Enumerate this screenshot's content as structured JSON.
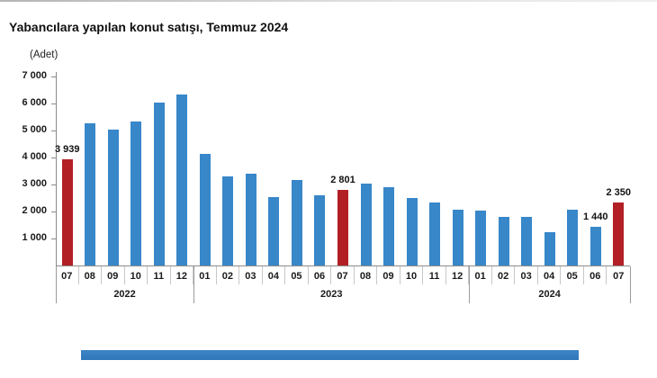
{
  "title": "Yabancılara yapılan konut satışı, Temmuz 2024",
  "unit_label": "(Adet)",
  "colors": {
    "bar_blue": "#3787C9",
    "bar_red": "#B22025",
    "axis": "#8C8C8C",
    "cell_border": "#C8C8C8",
    "footer_bar": "#3C85C6"
  },
  "chart_data": {
    "type": "bar",
    "title": "Yabancılara yapılan konut satışı, Temmuz 2024",
    "ylabel": "(Adet)",
    "ylim": [
      0,
      7000
    ],
    "grid": false,
    "legend": "none",
    "y_ticks": [
      {
        "value": 7000,
        "label": "7 000"
      },
      {
        "value": 6000,
        "label": "6 000"
      },
      {
        "value": 5000,
        "label": "5 000"
      },
      {
        "value": 4000,
        "label": "4 000"
      },
      {
        "value": 3000,
        "label": "3 000"
      },
      {
        "value": 2000,
        "label": "2 000"
      },
      {
        "value": 1000,
        "label": "1 000"
      }
    ],
    "points": [
      {
        "year": "2022",
        "month": "07",
        "value": 3939,
        "highlight": true,
        "label": "3 939"
      },
      {
        "year": "2022",
        "month": "08",
        "value": 5280,
        "highlight": false
      },
      {
        "year": "2022",
        "month": "09",
        "value": 5050,
        "highlight": false
      },
      {
        "year": "2022",
        "month": "10",
        "value": 5330,
        "highlight": false
      },
      {
        "year": "2022",
        "month": "11",
        "value": 6030,
        "highlight": false
      },
      {
        "year": "2022",
        "month": "12",
        "value": 6350,
        "highlight": false
      },
      {
        "year": "2023",
        "month": "01",
        "value": 4150,
        "highlight": false
      },
      {
        "year": "2023",
        "month": "02",
        "value": 3310,
        "highlight": false
      },
      {
        "year": "2023",
        "month": "03",
        "value": 3390,
        "highlight": false
      },
      {
        "year": "2023",
        "month": "04",
        "value": 2520,
        "highlight": false
      },
      {
        "year": "2023",
        "month": "05",
        "value": 3160,
        "highlight": false
      },
      {
        "year": "2023",
        "month": "06",
        "value": 2600,
        "highlight": false
      },
      {
        "year": "2023",
        "month": "07",
        "value": 2801,
        "highlight": true,
        "label": "2 801"
      },
      {
        "year": "2023",
        "month": "08",
        "value": 3030,
        "highlight": false
      },
      {
        "year": "2023",
        "month": "09",
        "value": 2900,
        "highlight": false
      },
      {
        "year": "2023",
        "month": "10",
        "value": 2500,
        "highlight": false
      },
      {
        "year": "2023",
        "month": "11",
        "value": 2340,
        "highlight": false
      },
      {
        "year": "2023",
        "month": "12",
        "value": 2060,
        "highlight": false
      },
      {
        "year": "2024",
        "month": "01",
        "value": 2030,
        "highlight": false
      },
      {
        "year": "2024",
        "month": "02",
        "value": 1810,
        "highlight": false
      },
      {
        "year": "2024",
        "month": "03",
        "value": 1800,
        "highlight": false
      },
      {
        "year": "2024",
        "month": "04",
        "value": 1230,
        "highlight": false
      },
      {
        "year": "2024",
        "month": "05",
        "value": 2060,
        "highlight": false
      },
      {
        "year": "2024",
        "month": "06",
        "value": 1440,
        "highlight": false,
        "label": "1 440"
      },
      {
        "year": "2024",
        "month": "07",
        "value": 2350,
        "highlight": true,
        "label": "2 350"
      }
    ]
  }
}
